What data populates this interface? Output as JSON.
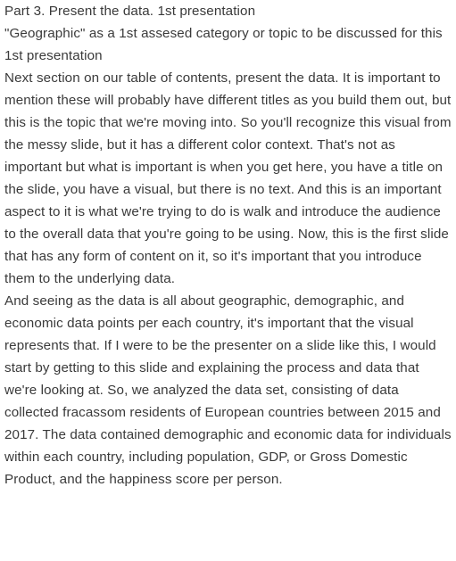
{
  "document": {
    "heading": "Part 3. Present the data. 1st presentation",
    "subtitle": "\"Geographic\" as a 1st assesed category or topic to be discussed for this 1st presentation",
    "paragraphs": [
      "Next section on our table of contents, present the data. It is important to mention these will probably have different titles as you build them out, but this is the topic that we're moving into. So you'll recognize this visual from the messy slide, but it has a different color context. That's not as important but what is important is when you get here, you have a title on the slide, you have a visual, but there is no text. And this is an important aspect to it is what we're trying to do is walk and introduce the audience to the overall data that you're going to be using. Now, this is the first slide that has any form of content on it, so it's important that you introduce them to the underlying data.",
      "And seeing as the data is all about geographic, demographic, and economic data points per each country, it's important that the visual represents that. If I were to be the presenter on a slide like this, I would start by getting to this slide and explaining the process and data that we're looking at. So, we analyzed the data set, consisting of data collected fracassom residents of European countries between 2015 and 2017. The data contained demographic and economic data for individuals within each country, including population, GDP, or Gross Domestic Product, and the happiness score per person."
    ]
  }
}
